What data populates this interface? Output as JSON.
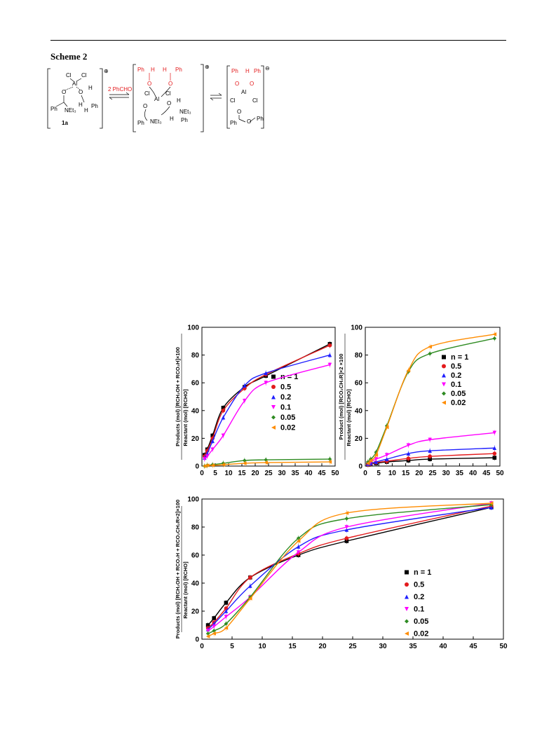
{
  "header": {
    "scheme_title": "Scheme 2"
  },
  "scheme": {
    "charge_plus": "⊕",
    "charge_minus": "⊖",
    "cl": "Cl",
    "al": "Al",
    "o": "O",
    "h": "H",
    "ph": "Ph",
    "net3": "NEt₃",
    "compound_label": "1a",
    "arrow_label": "2 PhCHO"
  },
  "chart_data": [
    {
      "type": "scatter",
      "ylabel": "Products (mol) [RCH₂OH + RCO₂H]×100 / Reactant (mol) [RCHO]",
      "xlim": [
        0,
        50
      ],
      "ylim": [
        0,
        100
      ],
      "xticks": [
        0,
        5,
        10,
        15,
        20,
        25,
        30,
        35,
        40,
        45,
        50
      ],
      "yticks": [
        0,
        20,
        40,
        60,
        80,
        100
      ],
      "legend_title": "n = 1",
      "legend_position": "right",
      "x": [
        1,
        2,
        4,
        8,
        16,
        24,
        48
      ],
      "series": [
        {
          "name": "n = 1",
          "color": "#000000",
          "marker": "square",
          "values": [
            8,
            12,
            22,
            42,
            57,
            65,
            88
          ]
        },
        {
          "name": "0.5",
          "color": "#e31a1c",
          "marker": "circle",
          "values": [
            7,
            11,
            20,
            40,
            56,
            66,
            87
          ]
        },
        {
          "name": "0.2",
          "color": "#1f1fff",
          "marker": "triangle-up",
          "values": [
            6,
            9,
            18,
            35,
            58,
            67,
            80
          ]
        },
        {
          "name": "0.1",
          "color": "#ff00ff",
          "marker": "triangle-down",
          "values": [
            5,
            7,
            12,
            22,
            47,
            60,
            73
          ]
        },
        {
          "name": "0.05",
          "color": "#2e8b22",
          "marker": "diamond",
          "values": [
            0,
            0.5,
            1,
            2,
            4,
            4.5,
            5
          ]
        },
        {
          "name": "0.02",
          "color": "#ff8c00",
          "marker": "triangle-left",
          "values": [
            0,
            0.5,
            0.5,
            1,
            2,
            2.5,
            3
          ]
        }
      ]
    },
    {
      "type": "scatter",
      "ylabel": "Product (mol) [RCO₂CH₂R]×2×100 / Reactant (mol) [RCHO]",
      "xlim": [
        0,
        50
      ],
      "ylim": [
        0,
        100
      ],
      "xticks": [
        0,
        5,
        10,
        15,
        20,
        25,
        30,
        35,
        40,
        45,
        50
      ],
      "yticks": [
        0,
        20,
        40,
        60,
        80,
        100
      ],
      "legend_position": "right",
      "x": [
        1,
        2,
        4,
        8,
        16,
        24,
        48
      ],
      "series": [
        {
          "name": "n = 1",
          "color": "#000000",
          "marker": "square",
          "values": [
            1,
            1.5,
            2,
            3,
            4,
            5,
            6
          ]
        },
        {
          "name": "0.5",
          "color": "#e31a1c",
          "marker": "circle",
          "values": [
            1,
            1.5,
            2.5,
            3.5,
            5.5,
            7,
            9
          ]
        },
        {
          "name": "0.2",
          "color": "#1f1fff",
          "marker": "triangle-up",
          "values": [
            1.5,
            2,
            3,
            5,
            9,
            11,
            13
          ]
        },
        {
          "name": "0.1",
          "color": "#ff00ff",
          "marker": "triangle-down",
          "values": [
            2,
            3,
            5,
            8,
            15,
            19,
            24
          ]
        },
        {
          "name": "0.05",
          "color": "#2e8b22",
          "marker": "diamond",
          "values": [
            3,
            5,
            10,
            29,
            68,
            81,
            92
          ]
        },
        {
          "name": "0.02",
          "color": "#ff8c00",
          "marker": "triangle-left",
          "values": [
            2,
            4,
            8,
            28,
            69,
            86,
            95
          ]
        }
      ]
    },
    {
      "type": "scatter",
      "ylabel": "Products (mol) [RCH₂OH + RCO₂H + RCO₂CH₂R×2]×100 / Reactant (mol) [RCHO]",
      "xlim": [
        0,
        50
      ],
      "ylim": [
        0,
        100
      ],
      "xticks": [
        0,
        5,
        10,
        15,
        20,
        25,
        30,
        35,
        40,
        45,
        50
      ],
      "yticks": [
        0,
        20,
        40,
        60,
        80,
        100
      ],
      "legend_position": "right",
      "x": [
        1,
        2,
        4,
        8,
        16,
        24,
        48
      ],
      "series": [
        {
          "name": "n = 1",
          "color": "#000000",
          "marker": "square",
          "values": [
            10,
            15,
            26,
            44,
            60,
            70,
            94
          ]
        },
        {
          "name": "0.5",
          "color": "#e31a1c",
          "marker": "circle",
          "values": [
            8,
            12,
            22,
            44,
            61,
            72,
            95
          ]
        },
        {
          "name": "0.2",
          "color": "#1f1fff",
          "marker": "triangle-up",
          "values": [
            7,
            11,
            20,
            38,
            66,
            78,
            94
          ]
        },
        {
          "name": "0.1",
          "color": "#ff00ff",
          "marker": "triangle-down",
          "values": [
            6,
            9,
            16,
            30,
            62,
            80,
            97
          ]
        },
        {
          "name": "0.05",
          "color": "#2e8b22",
          "marker": "diamond",
          "values": [
            4,
            6,
            11,
            30,
            72,
            86,
            96
          ]
        },
        {
          "name": "0.02",
          "color": "#ff8c00",
          "marker": "triangle-left",
          "values": [
            2,
            4,
            8,
            29,
            70,
            90,
            97
          ]
        }
      ]
    }
  ]
}
